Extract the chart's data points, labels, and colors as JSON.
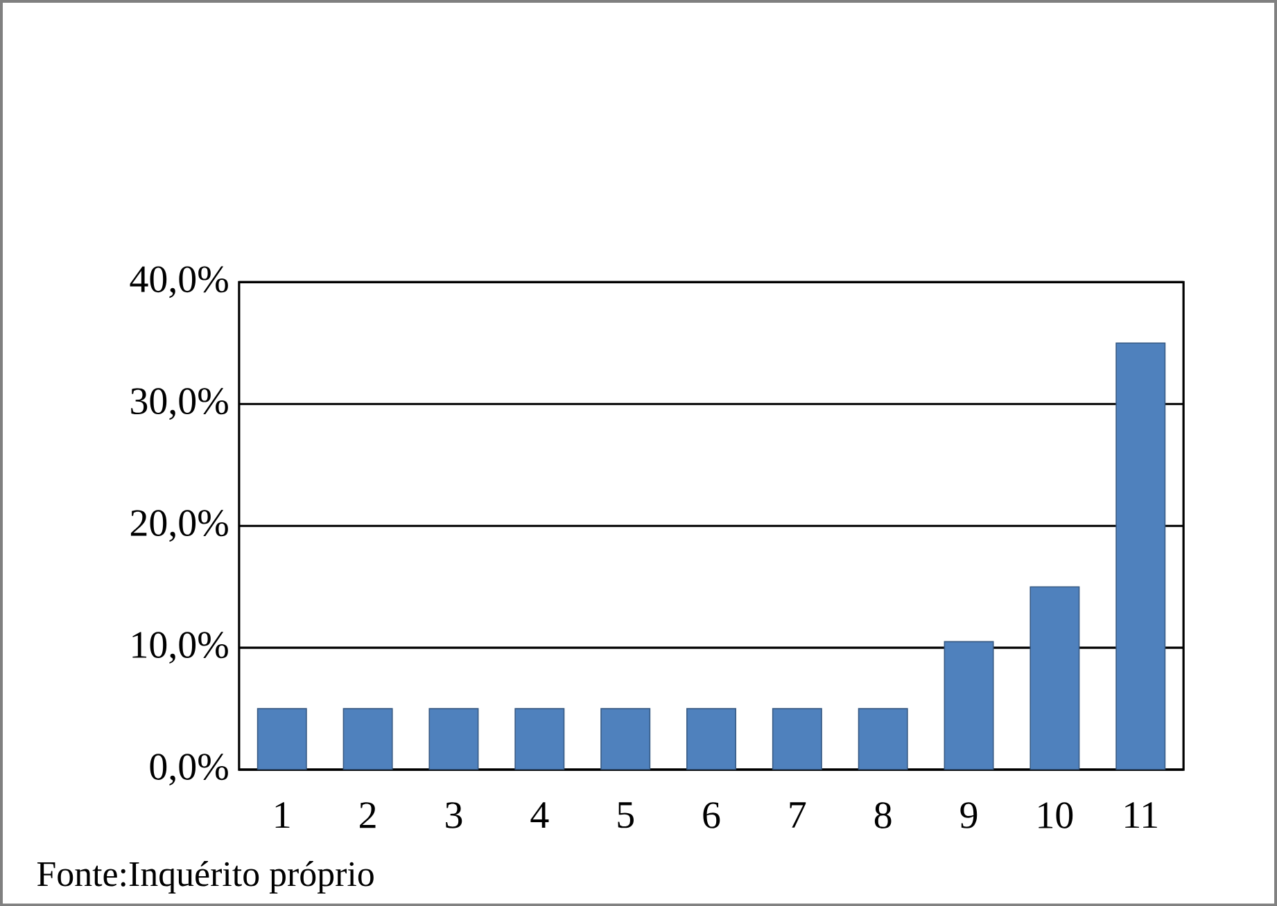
{
  "chart_data": {
    "type": "bar",
    "categories": [
      "1",
      "2",
      "3",
      "4",
      "5",
      "6",
      "7",
      "8",
      "9",
      "10",
      "11"
    ],
    "values": [
      5,
      5,
      5,
      5,
      5,
      5,
      5,
      5,
      10.5,
      15,
      35
    ],
    "color": "#4f81bd",
    "ylim": [
      0,
      40
    ],
    "yticks": [
      {
        "value": 0,
        "label": "0,0%"
      },
      {
        "value": 10,
        "label": "10,0%"
      },
      {
        "value": 20,
        "label": "20,0%"
      },
      {
        "value": 30,
        "label": "30,0%"
      },
      {
        "value": 40,
        "label": "40,0%"
      }
    ],
    "grid": "y",
    "annotations": [
      "Fonte:Inquérito próprio"
    ]
  }
}
